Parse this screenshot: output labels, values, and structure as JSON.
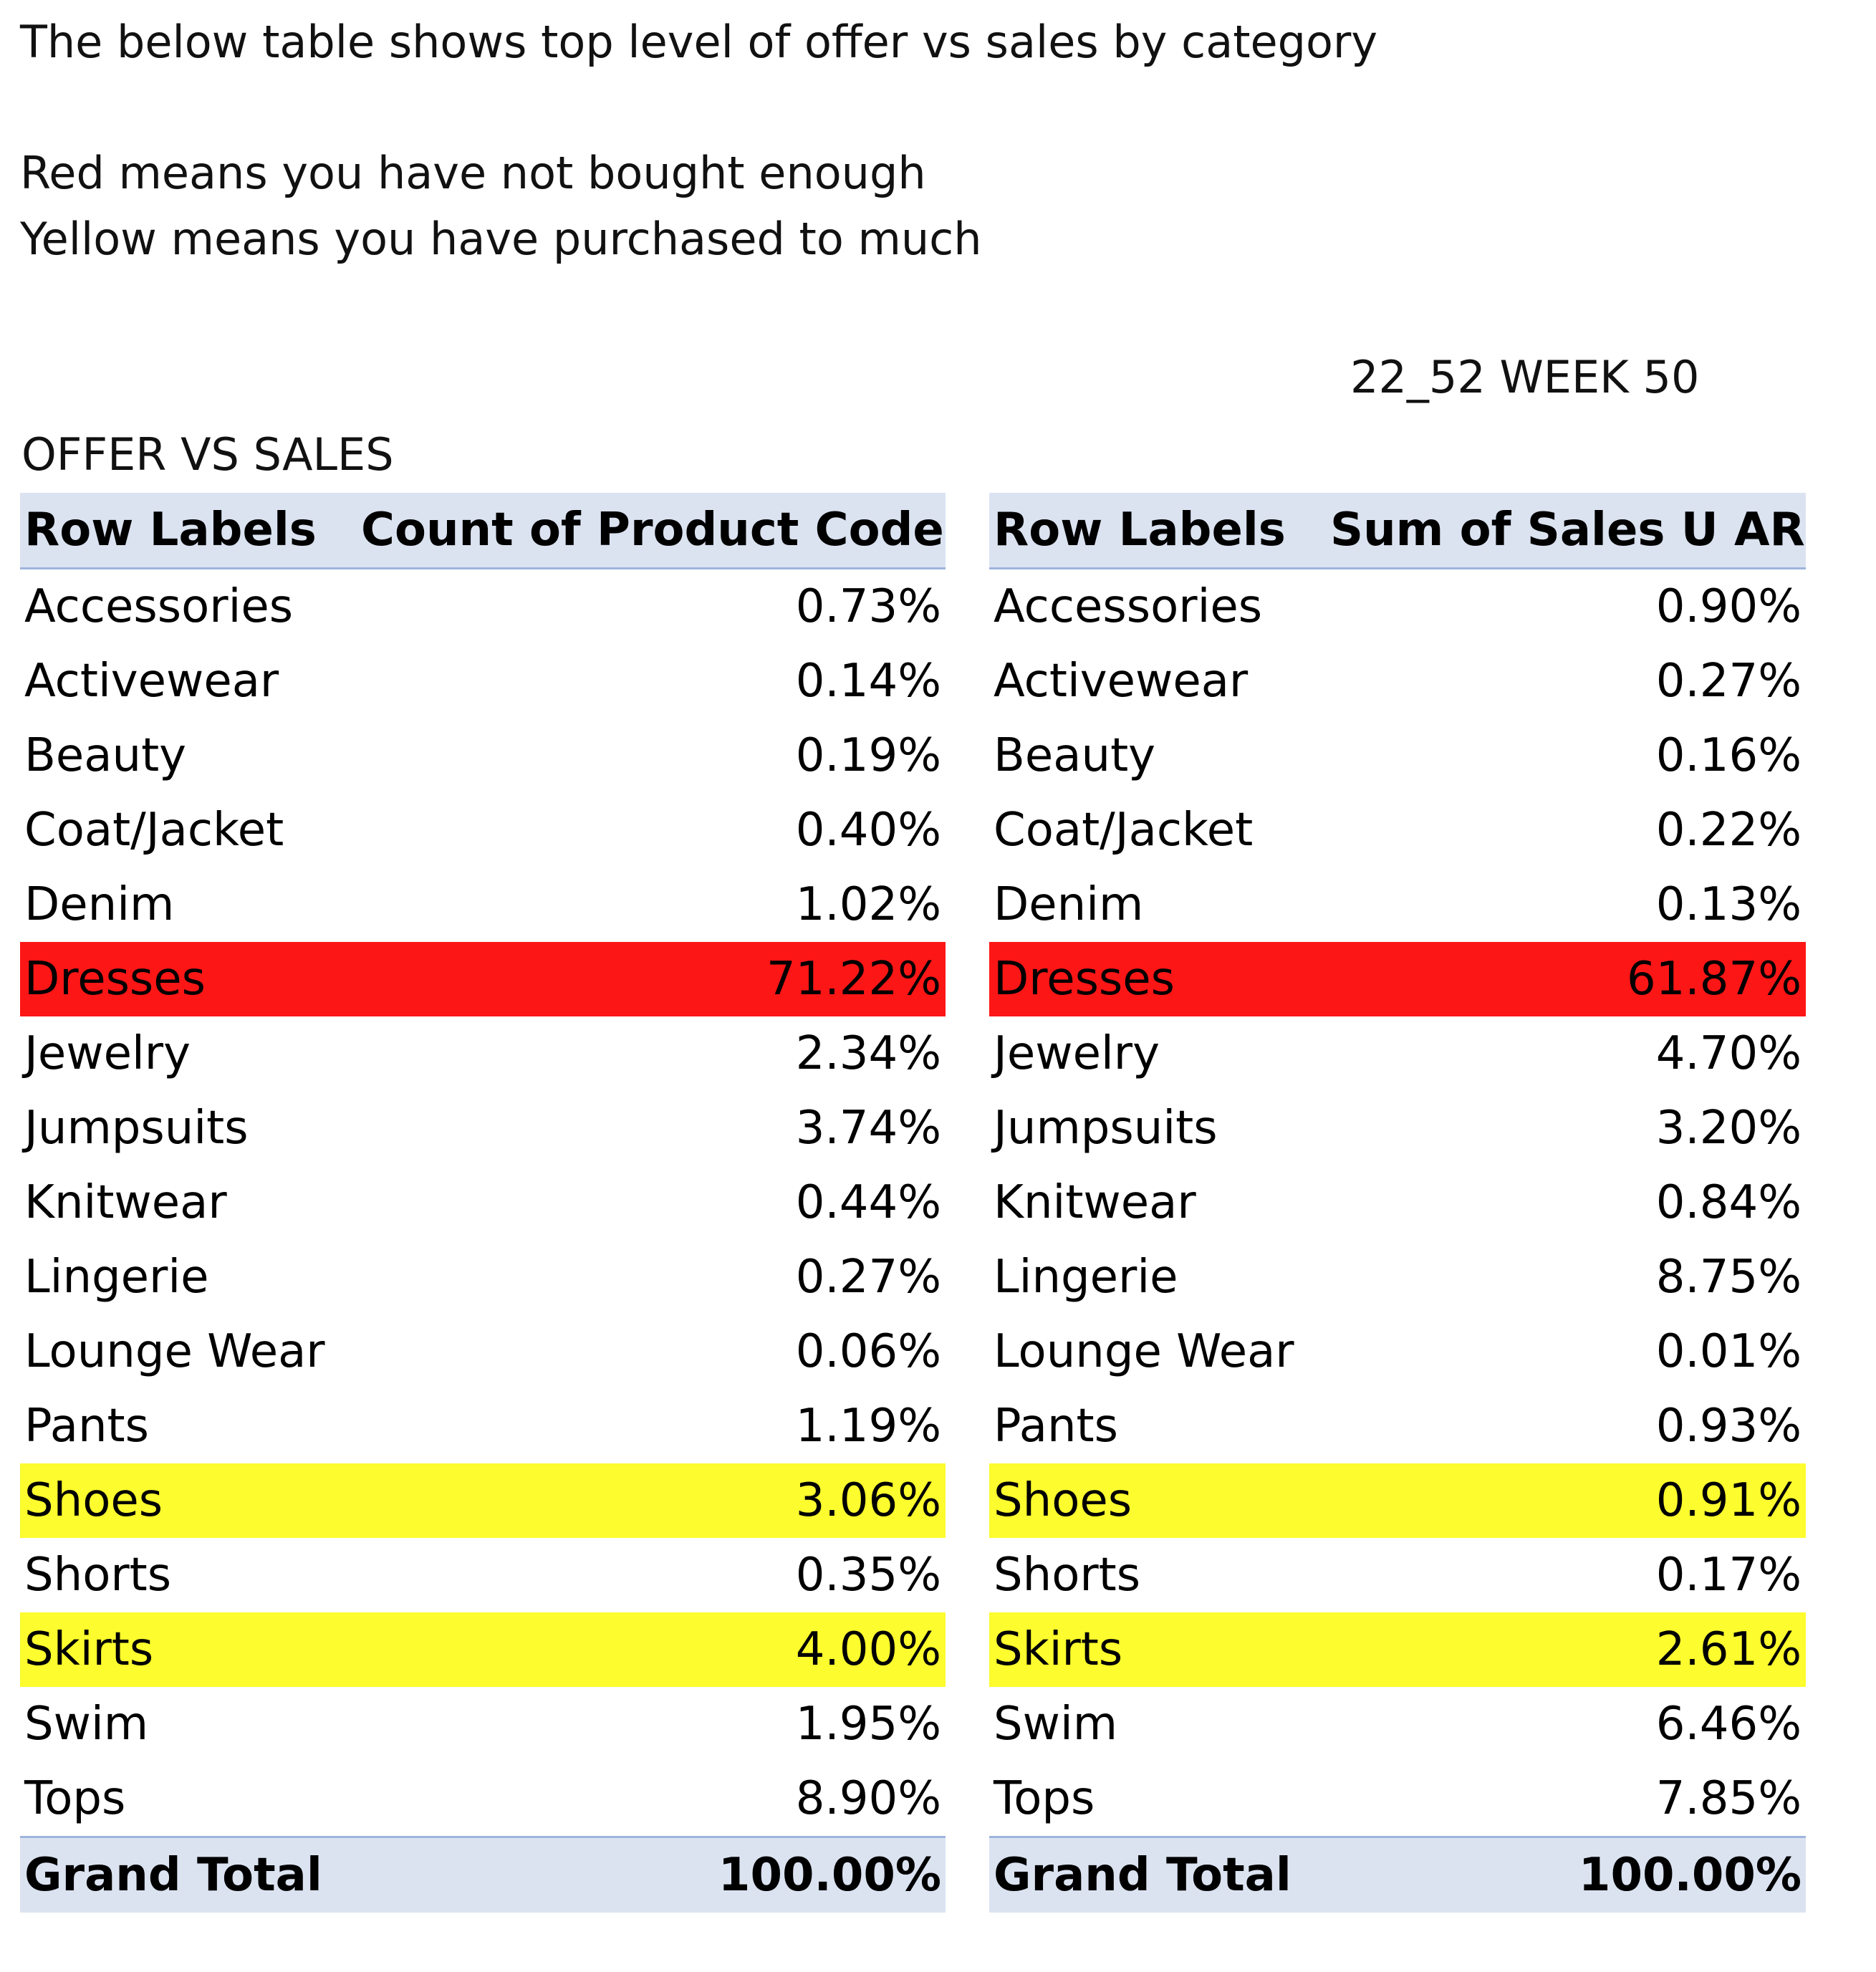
{
  "notes": {
    "intro": "The below table shows top level of offer vs sales by category",
    "red": "Red means you have not bought enough",
    "yellow": "Yellow means you have purchased to much"
  },
  "week_label": "22_52 WEEK 50",
  "table_title": "OFFER VS SALES",
  "highlight_colors": {
    "red": "#fc1616",
    "yellow": "#fcfc2e",
    "header": "#dbe3f1"
  },
  "offer_table": {
    "headers": [
      "Row Labels",
      "Count of Product Code"
    ],
    "rows": [
      {
        "label": "Accessories",
        "value": "0.73%",
        "highlight": ""
      },
      {
        "label": "Activewear",
        "value": "0.14%",
        "highlight": ""
      },
      {
        "label": "Beauty",
        "value": "0.19%",
        "highlight": ""
      },
      {
        "label": "Coat/Jacket",
        "value": "0.40%",
        "highlight": ""
      },
      {
        "label": "Denim",
        "value": "1.02%",
        "highlight": ""
      },
      {
        "label": "Dresses",
        "value": "71.22%",
        "highlight": "red"
      },
      {
        "label": "Jewelry",
        "value": "2.34%",
        "highlight": ""
      },
      {
        "label": "Jumpsuits",
        "value": "3.74%",
        "highlight": ""
      },
      {
        "label": "Knitwear",
        "value": "0.44%",
        "highlight": ""
      },
      {
        "label": "Lingerie",
        "value": "0.27%",
        "highlight": ""
      },
      {
        "label": "Lounge Wear",
        "value": "0.06%",
        "highlight": ""
      },
      {
        "label": "Pants",
        "value": "1.19%",
        "highlight": ""
      },
      {
        "label": "Shoes",
        "value": "3.06%",
        "highlight": "yellow"
      },
      {
        "label": "Shorts",
        "value": "0.35%",
        "highlight": ""
      },
      {
        "label": "Skirts",
        "value": "4.00%",
        "highlight": "yellow"
      },
      {
        "label": "Swim",
        "value": "1.95%",
        "highlight": ""
      },
      {
        "label": "Tops",
        "value": "8.90%",
        "highlight": ""
      }
    ],
    "total": {
      "label": "Grand Total",
      "value": "100.00%"
    }
  },
  "sales_table": {
    "headers": [
      "Row Labels",
      "Sum of Sales U AR"
    ],
    "rows": [
      {
        "label": "Accessories",
        "value": "0.90%",
        "highlight": ""
      },
      {
        "label": "Activewear",
        "value": "0.27%",
        "highlight": ""
      },
      {
        "label": "Beauty",
        "value": "0.16%",
        "highlight": ""
      },
      {
        "label": "Coat/Jacket",
        "value": "0.22%",
        "highlight": ""
      },
      {
        "label": "Denim",
        "value": "0.13%",
        "highlight": ""
      },
      {
        "label": "Dresses",
        "value": "61.87%",
        "highlight": "red"
      },
      {
        "label": "Jewelry",
        "value": "4.70%",
        "highlight": ""
      },
      {
        "label": "Jumpsuits",
        "value": "3.20%",
        "highlight": ""
      },
      {
        "label": "Knitwear",
        "value": "0.84%",
        "highlight": ""
      },
      {
        "label": "Lingerie",
        "value": "8.75%",
        "highlight": ""
      },
      {
        "label": "Lounge Wear",
        "value": "0.01%",
        "highlight": ""
      },
      {
        "label": "Pants",
        "value": "0.93%",
        "highlight": ""
      },
      {
        "label": "Shoes",
        "value": "0.91%",
        "highlight": "yellow"
      },
      {
        "label": "Shorts",
        "value": "0.17%",
        "highlight": ""
      },
      {
        "label": "Skirts",
        "value": "2.61%",
        "highlight": "yellow"
      },
      {
        "label": "Swim",
        "value": "6.46%",
        "highlight": ""
      },
      {
        "label": "Tops",
        "value": "7.85%",
        "highlight": ""
      }
    ],
    "total": {
      "label": "Grand Total",
      "value": "100.00%"
    }
  }
}
